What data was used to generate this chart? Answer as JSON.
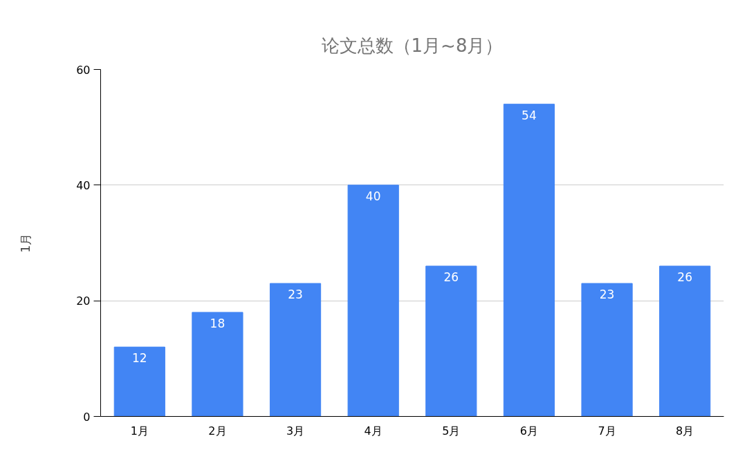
{
  "chart_data": {
    "type": "bar",
    "title": "论文总数（1月~8月）",
    "ylabel": "1月",
    "categories": [
      "1月",
      "2月",
      "3月",
      "4月",
      "5月",
      "6月",
      "7月",
      "8月"
    ],
    "values": [
      12,
      18,
      23,
      40,
      26,
      54,
      23,
      26
    ],
    "color": "#4285f4",
    "ylim": [
      0,
      60
    ],
    "yticks": [
      0,
      20,
      40,
      60
    ],
    "grid": "y",
    "data_labels": true
  }
}
